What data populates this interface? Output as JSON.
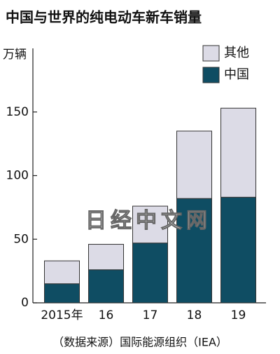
{
  "chart_data": {
    "type": "stacked_bar",
    "title": "中国与世界的纯电动车新车销量",
    "y_label": "万辆",
    "source": "（数据来源）国际能源组织（IEA）",
    "watermark": "日经中文网",
    "categories": [
      "2015年",
      "16",
      "17",
      "18",
      "19"
    ],
    "series": [
      {
        "name": "中国",
        "color": "#0f4d63",
        "values": [
          15,
          26,
          47,
          82,
          83
        ]
      },
      {
        "name": "其他",
        "color": "#dcdbe6",
        "values": [
          18,
          20,
          29,
          53,
          70
        ]
      }
    ],
    "ylim": [
      0,
      200
    ],
    "yticks": [
      0,
      50,
      100,
      150
    ]
  }
}
